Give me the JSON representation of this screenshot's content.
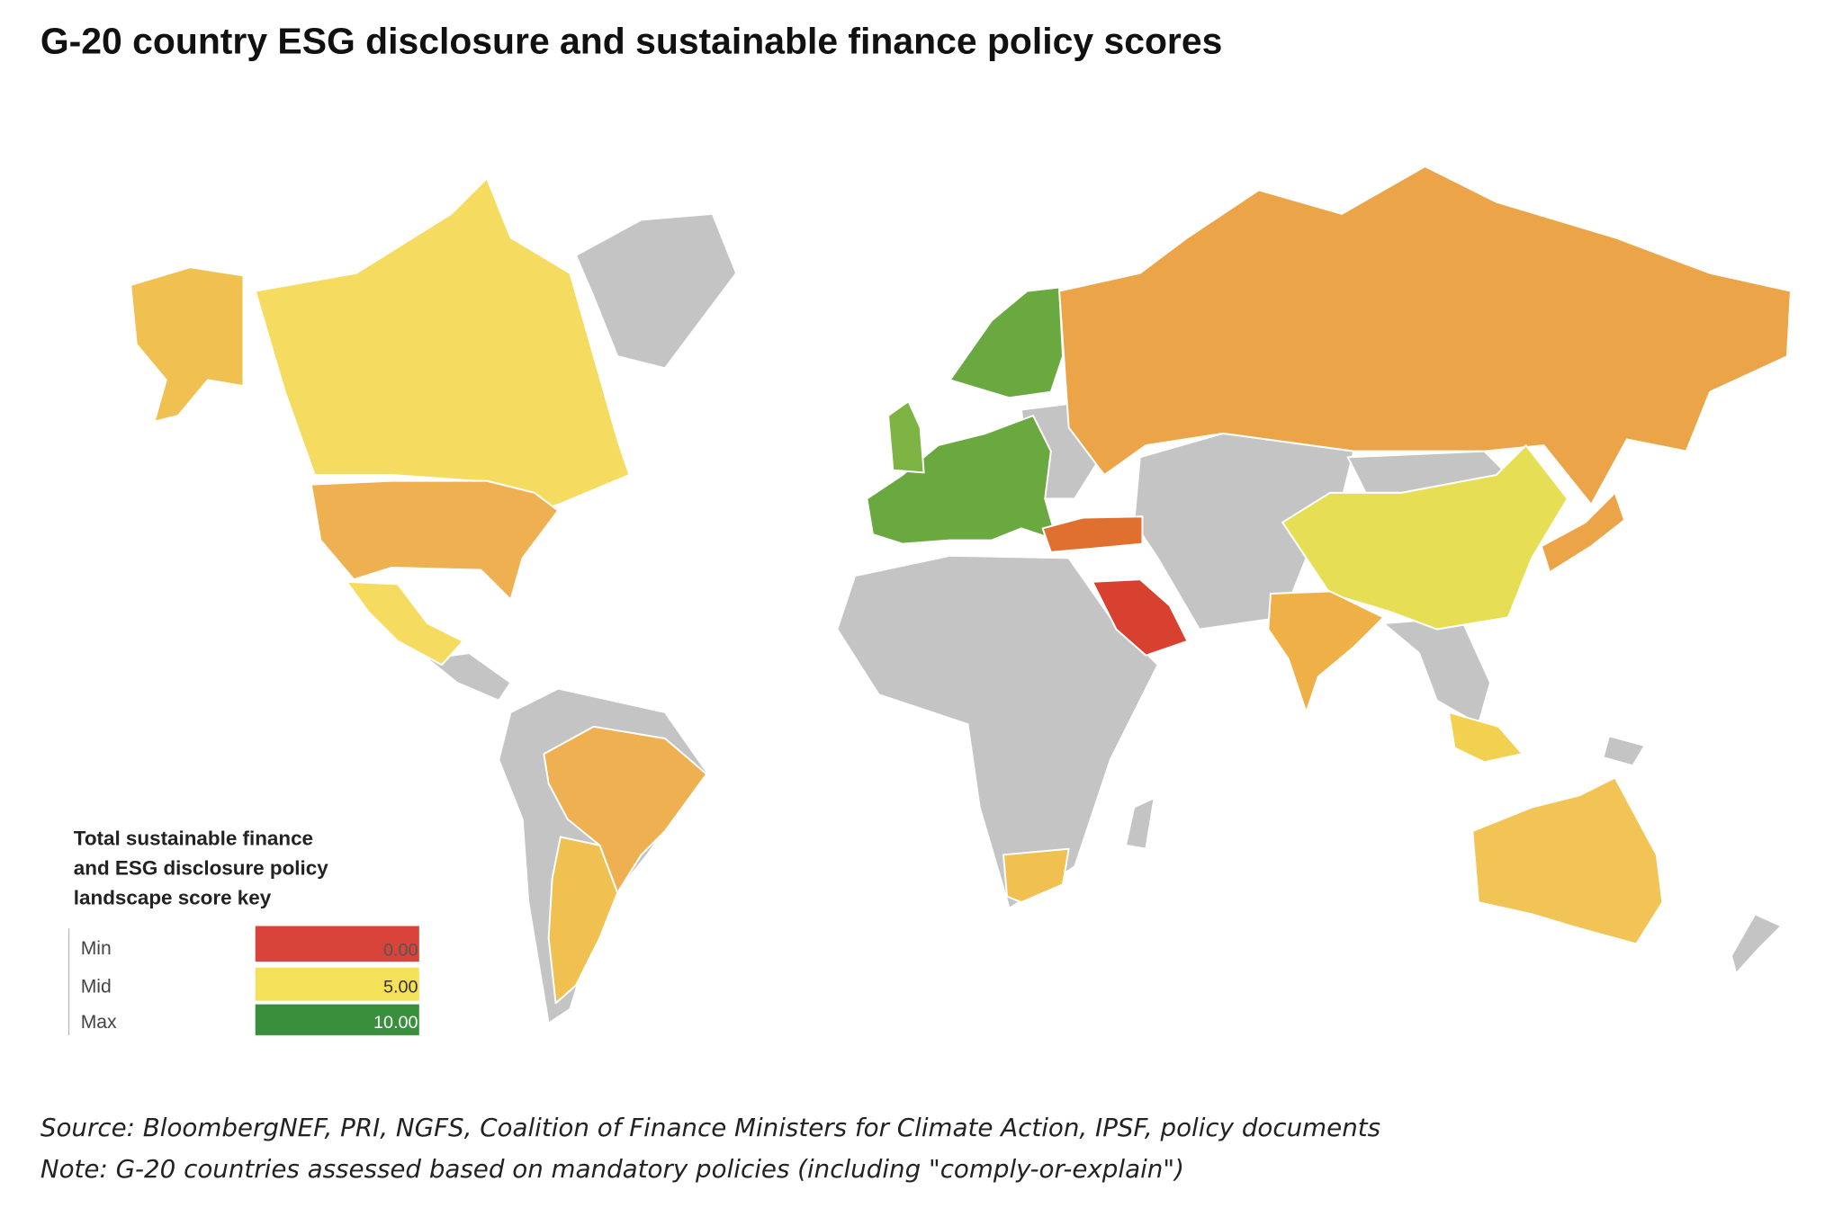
{
  "title": "G-20 country ESG disclosure and sustainable finance policy scores",
  "legend": {
    "title_lines": [
      "Total sustainable finance",
      "and ESG disclosure policy",
      "landscape score key"
    ],
    "rows": [
      {
        "label": "Min",
        "value": "0.00"
      },
      {
        "label": "Mid",
        "value": "5.00"
      },
      {
        "label": "Max",
        "value": "10.00"
      }
    ]
  },
  "source": "Source: BloombergNEF, PRI, NGFS, Coalition of Finance Ministers for Climate Action, IPSF, policy documents",
  "note": "Note: G-20 countries assessed based on mandatory policies (including \"comply-or-explain\")"
}
